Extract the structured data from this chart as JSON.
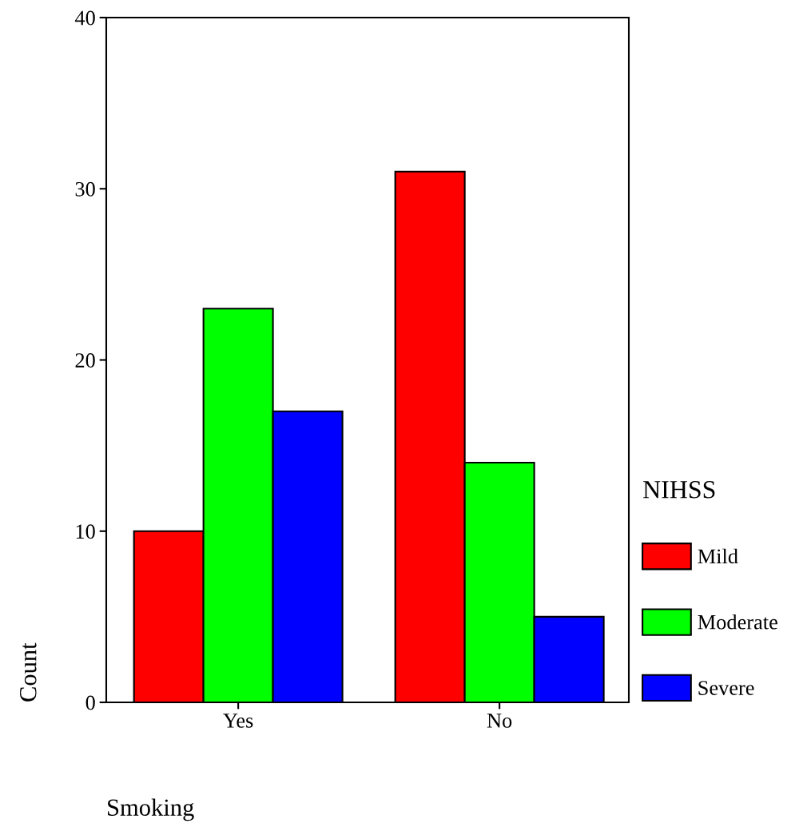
{
  "chart_data": {
    "type": "bar",
    "xlabel": "Smoking",
    "ylabel": "Count",
    "legend_title": "NIHSS",
    "categories": [
      "Yes",
      "No"
    ],
    "series": [
      {
        "name": "Mild",
        "color": "#ff0000",
        "values": [
          10,
          31
        ]
      },
      {
        "name": "Moderate",
        "color": "#00ff00",
        "values": [
          23,
          14
        ]
      },
      {
        "name": "Severe",
        "color": "#0000ff",
        "values": [
          17,
          5
        ]
      }
    ],
    "ylim": [
      0,
      40
    ],
    "yticks": [
      0,
      10,
      20,
      30,
      40
    ],
    "grid": false,
    "legend": "right"
  }
}
